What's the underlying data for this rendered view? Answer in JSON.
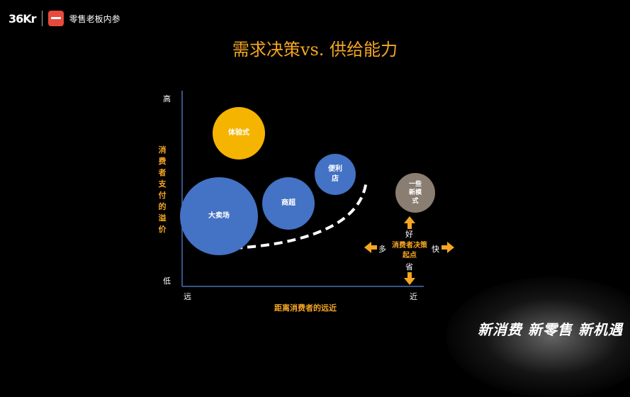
{
  "header": {
    "logo_text": "36Kr",
    "brand_name": "零售老板内参"
  },
  "title": "需求决策vs. 供给能力",
  "y_axis": {
    "top_label": "高",
    "bottom_label": "低",
    "label": "消费者支付的溢价"
  },
  "x_axis": {
    "left_label": "远",
    "right_label": "近",
    "label": "距离消费者的远近"
  },
  "bubbles": [
    {
      "id": "tiyan",
      "label": "体验式",
      "color": "#f5b400"
    },
    {
      "id": "dmc",
      "label": "大卖场",
      "color": "#4472c4"
    },
    {
      "id": "shangchao",
      "label": "商超",
      "color": "#4472c4"
    },
    {
      "id": "bianli",
      "label": "便利店",
      "color": "#4472c4"
    },
    {
      "id": "new",
      "label": "一些新模式",
      "color": "#8a7d72"
    }
  ],
  "legend": {
    "up": "好",
    "down": "省",
    "left": "多",
    "right": "快",
    "center": "消费者决策起点",
    "arrow_color": "#f5a623"
  },
  "watermark": "新消费 新零售 新机遇"
}
